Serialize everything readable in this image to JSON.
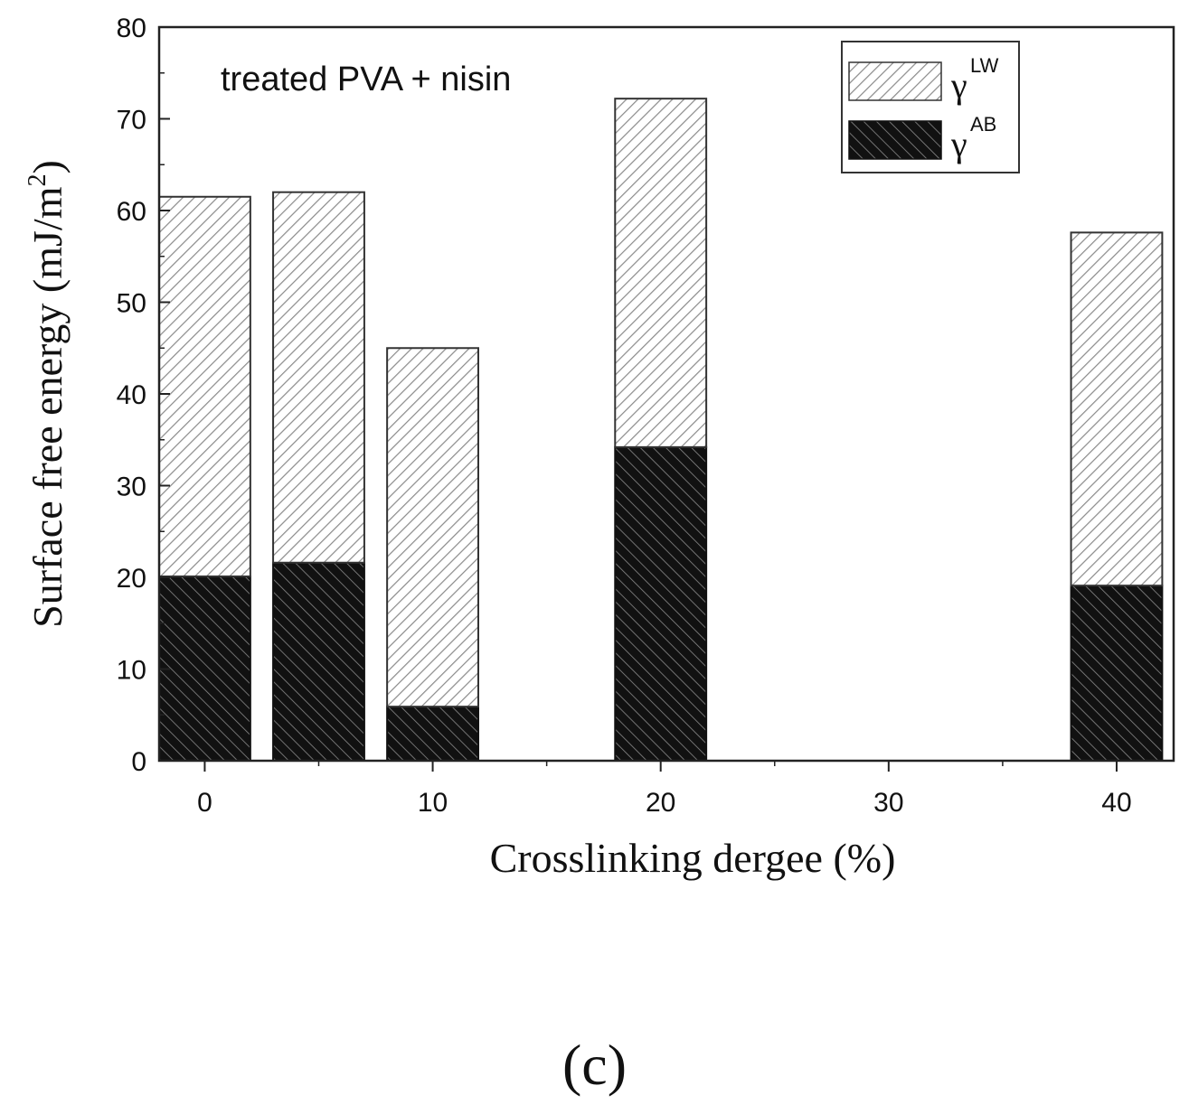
{
  "chart_data": {
    "type": "bar",
    "stacked": true,
    "title": "",
    "annotation": "treated PVA + nisin",
    "xlabel": "Crosslinking dergee (%)",
    "ylabel": "Surface free energy (mJ/m",
    "ylabel_sup": "2",
    "ylabel_close": ")",
    "xlim": [
      -2,
      42.5
    ],
    "ylim": [
      0,
      80
    ],
    "x_ticks": [
      0,
      10,
      20,
      30,
      40
    ],
    "y_ticks": [
      0,
      10,
      20,
      30,
      40,
      50,
      60,
      70,
      80
    ],
    "x": [
      0,
      5,
      10,
      20,
      40
    ],
    "series": [
      {
        "name": "γ",
        "sup": "AB",
        "values": [
          20.1,
          21.6,
          5.9,
          34.2,
          19.1
        ]
      },
      {
        "name": "γ",
        "sup": "LW",
        "values": [
          41.4,
          40.4,
          39.1,
          38.0,
          38.5
        ]
      }
    ],
    "totals": [
      61.5,
      62.0,
      45.0,
      72.2,
      57.6
    ],
    "legend_position": "top-right",
    "colors": {
      "ab": "#111111",
      "lw": "#ffffff",
      "hatch": "#888888"
    }
  },
  "panel_label": "(c)"
}
